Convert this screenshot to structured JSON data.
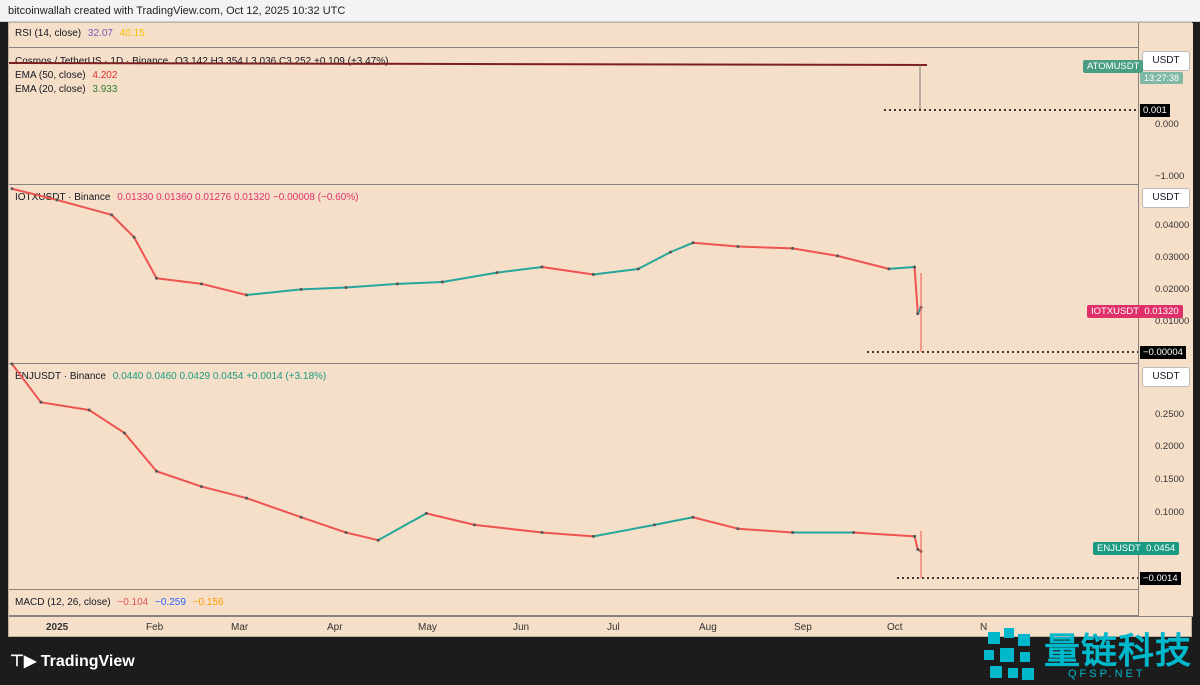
{
  "header": {
    "credit": "bitcoinwallah created with TradingView.com, Oct 12, 2025 10:32 UTC"
  },
  "colors": {
    "background": "#f6dfc8",
    "up": "#26a69a",
    "down": "#ef5350",
    "ema50": "#e03030",
    "ema20": "#2e7d32",
    "rsi": "#7e57c2",
    "rsi_ma": "#f9c000",
    "macd": "#e05050",
    "signal": "#2962ff",
    "hist": "#ff9800"
  },
  "top_pane": {
    "rsi_legend": {
      "label": "RSI (14, close)",
      "v1": "32.07",
      "v2": "40.15"
    },
    "symbol_legend": {
      "label": "Cosmos / TetherUS · 1D · Binance",
      "ohlc": "O3.142 H3.354 L3.036 C3.252 +0.109 (+3.47%)"
    },
    "ema50": {
      "label": "EMA (50, close)",
      "value": "4.202"
    },
    "ema20": {
      "label": "EMA (20, close)",
      "value": "3.933"
    },
    "currency": "USDT",
    "tag": "ATOMUSDT",
    "tag_sub": "13:27:38",
    "ticks": [
      "0.000",
      "−1.000"
    ],
    "dotted_value": "0.001"
  },
  "mid_pane": {
    "legend": {
      "label": "IOTXUSDT · Binance",
      "values": "0.01330  0.01360  0.01276  0.01320  −0.00008 (−0.60%)"
    },
    "currency": "USDT",
    "ticks": [
      "0.04000",
      "0.03000",
      "0.02000",
      "0.01000"
    ],
    "tag": {
      "name": "IOTXUSDT",
      "value": "0.01320"
    },
    "dotted_value": "−0.00004"
  },
  "bot_pane": {
    "legend": {
      "label": "ENJUSDT · Binance",
      "values": "0.0440  0.0460  0.0429  0.0454  +0.0014 (+3.18%)"
    },
    "currency": "USDT",
    "ticks": [
      "0.2500",
      "0.2000",
      "0.1500",
      "0.1000"
    ],
    "tag": {
      "name": "ENJUSDT",
      "value": "0.0454"
    },
    "dotted_value": "−0.0014"
  },
  "macd_legend": {
    "label": "MACD (12, 26, close)",
    "v1": "−0.104",
    "v2": "−0.259",
    "v3": "−0.156"
  },
  "x_axis": [
    "2025",
    "Feb",
    "Mar",
    "Apr",
    "May",
    "Jun",
    "Jul",
    "Aug",
    "Sep",
    "Oct",
    "N"
  ],
  "footer": {
    "brand": "TradingView"
  },
  "watermark": {
    "cn": "量链科技",
    "en": "QFSP.NET"
  },
  "chart_data": [
    {
      "type": "line",
      "title": "IOTXUSDT · Binance",
      "x": [
        "2025-01-01",
        "2025-01-15",
        "2025-02-01",
        "2025-02-08",
        "2025-02-15",
        "2025-03-01",
        "2025-03-15",
        "2025-04-01",
        "2025-04-15",
        "2025-05-01",
        "2025-05-15",
        "2025-06-01",
        "2025-06-15",
        "2025-07-01",
        "2025-07-15",
        "2025-07-25",
        "2025-08-01",
        "2025-08-15",
        "2025-09-01",
        "2025-09-15",
        "2025-10-01",
        "2025-10-09",
        "2025-10-10",
        "2025-10-11"
      ],
      "values": [
        0.045,
        0.042,
        0.038,
        0.032,
        0.021,
        0.0195,
        0.0165,
        0.018,
        0.0185,
        0.0195,
        0.02,
        0.0225,
        0.024,
        0.022,
        0.0235,
        0.028,
        0.0305,
        0.0295,
        0.029,
        0.027,
        0.0235,
        0.024,
        0.0115,
        0.0132
      ],
      "ylabel": "USDT",
      "ylim": [
        -0.002,
        0.046
      ]
    },
    {
      "type": "line",
      "title": "ENJUSDT · Binance",
      "x": [
        "2025-01-01",
        "2025-01-10",
        "2025-01-25",
        "2025-02-05",
        "2025-02-15",
        "2025-03-01",
        "2025-03-15",
        "2025-04-01",
        "2025-04-15",
        "2025-04-25",
        "2025-05-10",
        "2025-05-25",
        "2025-06-15",
        "2025-07-01",
        "2025-07-20",
        "2025-08-01",
        "2025-08-15",
        "2025-09-01",
        "2025-09-20",
        "2025-10-09",
        "2025-10-10",
        "2025-10-11"
      ],
      "values": [
        0.29,
        0.24,
        0.23,
        0.2,
        0.15,
        0.13,
        0.115,
        0.09,
        0.07,
        0.06,
        0.095,
        0.08,
        0.07,
        0.065,
        0.08,
        0.09,
        0.075,
        0.07,
        0.07,
        0.065,
        0.048,
        0.0454
      ],
      "ylabel": "USDT",
      "ylim": [
        -0.005,
        0.29
      ]
    }
  ]
}
